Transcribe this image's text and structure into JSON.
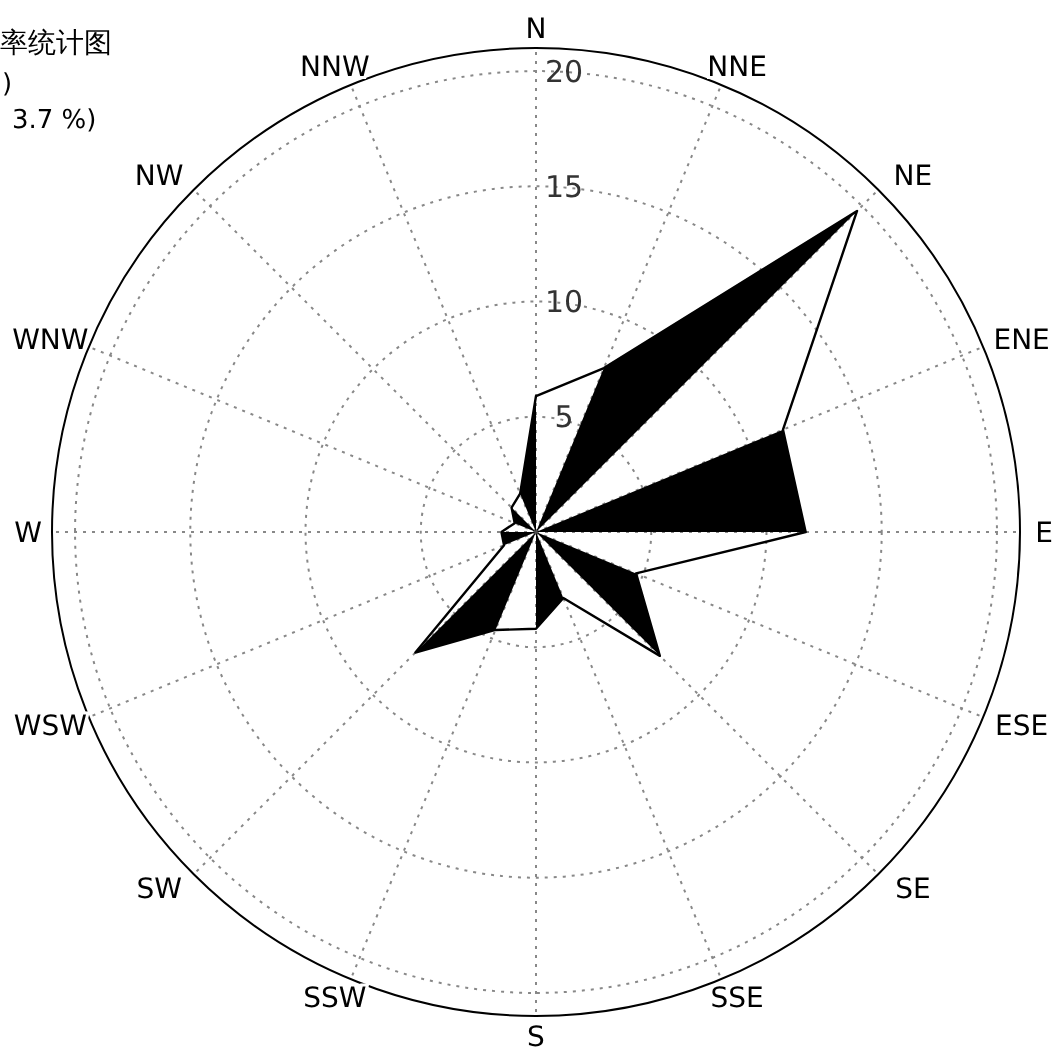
{
  "chart_data": {
    "type": "radar",
    "title": "率统计图",
    "annotations": [
      ")",
      "3.7 %)"
    ],
    "categories": [
      "N",
      "NNE",
      "NE",
      "ENE",
      "E",
      "ESE",
      "SE",
      "SSE",
      "S",
      "SSW",
      "SW",
      "WSW",
      "W",
      "WNW",
      "NW",
      "NNW"
    ],
    "series": [
      {
        "color": "#000000",
        "values": [
          5.9,
          7.7,
          19.7,
          11.6,
          11.7,
          4.7,
          7.6,
          3.1,
          4.2,
          4.6,
          7.4,
          1.5,
          1.5,
          1.0,
          1.5,
          1.8
        ]
      }
    ],
    "ylim": [
      0,
      21
    ],
    "yticks": [
      5,
      10,
      15,
      20
    ],
    "grid": true
  }
}
